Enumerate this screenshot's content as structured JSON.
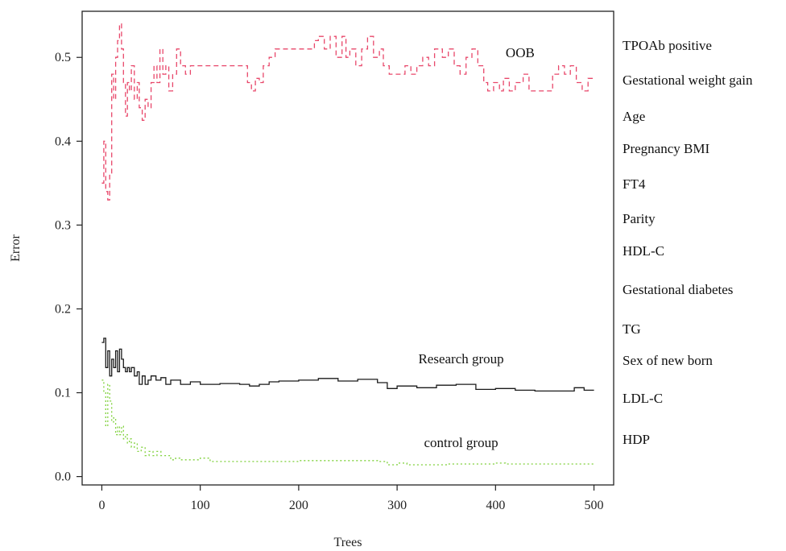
{
  "chart_data": {
    "type": "line",
    "title": "",
    "xlabel": "Trees",
    "ylabel": "Error",
    "xlim": [
      -20,
      520
    ],
    "ylim": [
      -0.01,
      0.555
    ],
    "xticks": [
      0,
      100,
      200,
      300,
      400,
      500
    ],
    "yticks": [
      0.0,
      0.1,
      0.2,
      0.3,
      0.4,
      0.5
    ],
    "grid": false,
    "series": [
      {
        "name": "OOB",
        "color": "#e8476a",
        "dash": "dashed",
        "points": [
          [
            0,
            0.35
          ],
          [
            2,
            0.4
          ],
          [
            4,
            0.34
          ],
          [
            6,
            0.33
          ],
          [
            8,
            0.36
          ],
          [
            10,
            0.48
          ],
          [
            12,
            0.45
          ],
          [
            14,
            0.5
          ],
          [
            16,
            0.52
          ],
          [
            18,
            0.54
          ],
          [
            20,
            0.51
          ],
          [
            22,
            0.47
          ],
          [
            24,
            0.43
          ],
          [
            26,
            0.47
          ],
          [
            28,
            0.46
          ],
          [
            30,
            0.49
          ],
          [
            33,
            0.45
          ],
          [
            36,
            0.47
          ],
          [
            38,
            0.44
          ],
          [
            41,
            0.425
          ],
          [
            44,
            0.45
          ],
          [
            47,
            0.44
          ],
          [
            50,
            0.47
          ],
          [
            53,
            0.49
          ],
          [
            56,
            0.47
          ],
          [
            59,
            0.51
          ],
          [
            62,
            0.48
          ],
          [
            65,
            0.49
          ],
          [
            68,
            0.46
          ],
          [
            72,
            0.48
          ],
          [
            76,
            0.51
          ],
          [
            80,
            0.49
          ],
          [
            85,
            0.48
          ],
          [
            90,
            0.49
          ],
          [
            100,
            0.49
          ],
          [
            120,
            0.49
          ],
          [
            140,
            0.49
          ],
          [
            148,
            0.47
          ],
          [
            152,
            0.46
          ],
          [
            156,
            0.475
          ],
          [
            160,
            0.47
          ],
          [
            164,
            0.49
          ],
          [
            170,
            0.5
          ],
          [
            176,
            0.51
          ],
          [
            190,
            0.51
          ],
          [
            210,
            0.51
          ],
          [
            216,
            0.52
          ],
          [
            220,
            0.525
          ],
          [
            226,
            0.51
          ],
          [
            232,
            0.525
          ],
          [
            238,
            0.5
          ],
          [
            244,
            0.525
          ],
          [
            248,
            0.5
          ],
          [
            252,
            0.51
          ],
          [
            258,
            0.49
          ],
          [
            264,
            0.51
          ],
          [
            270,
            0.525
          ],
          [
            276,
            0.5
          ],
          [
            282,
            0.51
          ],
          [
            286,
            0.49
          ],
          [
            292,
            0.48
          ],
          [
            300,
            0.48
          ],
          [
            308,
            0.49
          ],
          [
            314,
            0.48
          ],
          [
            320,
            0.49
          ],
          [
            326,
            0.5
          ],
          [
            332,
            0.49
          ],
          [
            338,
            0.51
          ],
          [
            346,
            0.5
          ],
          [
            352,
            0.51
          ],
          [
            358,
            0.49
          ],
          [
            364,
            0.48
          ],
          [
            370,
            0.5
          ],
          [
            376,
            0.51
          ],
          [
            382,
            0.49
          ],
          [
            388,
            0.47
          ],
          [
            392,
            0.46
          ],
          [
            398,
            0.47
          ],
          [
            404,
            0.46
          ],
          [
            408,
            0.475
          ],
          [
            414,
            0.46
          ],
          [
            420,
            0.47
          ],
          [
            428,
            0.48
          ],
          [
            434,
            0.46
          ],
          [
            444,
            0.46
          ],
          [
            454,
            0.46
          ],
          [
            458,
            0.48
          ],
          [
            464,
            0.49
          ],
          [
            470,
            0.48
          ],
          [
            476,
            0.49
          ],
          [
            482,
            0.47
          ],
          [
            488,
            0.46
          ],
          [
            494,
            0.475
          ],
          [
            500,
            0.475
          ]
        ]
      },
      {
        "name": "Research group",
        "color": "#1a1a1a",
        "dash": "solid",
        "points": [
          [
            0,
            0.16
          ],
          [
            2,
            0.165
          ],
          [
            4,
            0.13
          ],
          [
            6,
            0.15
          ],
          [
            8,
            0.12
          ],
          [
            10,
            0.14
          ],
          [
            12,
            0.13
          ],
          [
            14,
            0.15
          ],
          [
            16,
            0.125
          ],
          [
            18,
            0.152
          ],
          [
            20,
            0.14
          ],
          [
            22,
            0.13
          ],
          [
            24,
            0.125
          ],
          [
            26,
            0.13
          ],
          [
            28,
            0.125
          ],
          [
            30,
            0.13
          ],
          [
            33,
            0.12
          ],
          [
            36,
            0.125
          ],
          [
            38,
            0.11
          ],
          [
            41,
            0.12
          ],
          [
            44,
            0.11
          ],
          [
            47,
            0.115
          ],
          [
            50,
            0.12
          ],
          [
            55,
            0.115
          ],
          [
            60,
            0.118
          ],
          [
            65,
            0.11
          ],
          [
            70,
            0.115
          ],
          [
            80,
            0.11
          ],
          [
            90,
            0.113
          ],
          [
            100,
            0.11
          ],
          [
            120,
            0.111
          ],
          [
            140,
            0.11
          ],
          [
            150,
            0.108
          ],
          [
            160,
            0.11
          ],
          [
            170,
            0.113
          ],
          [
            180,
            0.114
          ],
          [
            200,
            0.115
          ],
          [
            220,
            0.117
          ],
          [
            240,
            0.114
          ],
          [
            260,
            0.116
          ],
          [
            280,
            0.112
          ],
          [
            290,
            0.105
          ],
          [
            300,
            0.108
          ],
          [
            320,
            0.106
          ],
          [
            340,
            0.109
          ],
          [
            360,
            0.11
          ],
          [
            380,
            0.104
          ],
          [
            400,
            0.105
          ],
          [
            420,
            0.103
          ],
          [
            440,
            0.102
          ],
          [
            460,
            0.102
          ],
          [
            480,
            0.106
          ],
          [
            490,
            0.103
          ],
          [
            500,
            0.103
          ]
        ]
      },
      {
        "name": "control group",
        "color": "#7fd13a",
        "dash": "dotted",
        "points": [
          [
            0,
            0.115
          ],
          [
            2,
            0.1
          ],
          [
            4,
            0.06
          ],
          [
            6,
            0.11
          ],
          [
            8,
            0.09
          ],
          [
            10,
            0.065
          ],
          [
            12,
            0.07
          ],
          [
            14,
            0.05
          ],
          [
            16,
            0.06
          ],
          [
            18,
            0.05
          ],
          [
            20,
            0.06
          ],
          [
            22,
            0.045
          ],
          [
            24,
            0.05
          ],
          [
            26,
            0.04
          ],
          [
            28,
            0.045
          ],
          [
            30,
            0.035
          ],
          [
            33,
            0.04
          ],
          [
            36,
            0.03
          ],
          [
            40,
            0.035
          ],
          [
            44,
            0.025
          ],
          [
            48,
            0.03
          ],
          [
            52,
            0.025
          ],
          [
            56,
            0.03
          ],
          [
            60,
            0.025
          ],
          [
            65,
            0.025
          ],
          [
            70,
            0.02
          ],
          [
            75,
            0.022
          ],
          [
            80,
            0.02
          ],
          [
            90,
            0.02
          ],
          [
            100,
            0.022
          ],
          [
            110,
            0.018
          ],
          [
            150,
            0.018
          ],
          [
            180,
            0.018
          ],
          [
            200,
            0.019
          ],
          [
            250,
            0.019
          ],
          [
            280,
            0.018
          ],
          [
            290,
            0.014
          ],
          [
            300,
            0.016
          ],
          [
            310,
            0.014
          ],
          [
            350,
            0.015
          ],
          [
            400,
            0.016
          ],
          [
            410,
            0.015
          ],
          [
            450,
            0.015
          ],
          [
            500,
            0.015
          ]
        ]
      }
    ],
    "annotations": [
      {
        "text": "OOB",
        "x": 425,
        "y": 0.5
      },
      {
        "text": "Research group",
        "x": 365,
        "y": 0.135
      },
      {
        "text": "control group",
        "x": 365,
        "y": 0.035
      }
    ]
  },
  "variables": [
    "TPOAb positive",
    "Gestational weight gain",
    "Age",
    "Pregnancy BMI",
    "FT4",
    "Parity",
    "HDL-C",
    "Gestational diabetes",
    "TG",
    "Sex of new born",
    "LDL-C",
    "HDP"
  ]
}
